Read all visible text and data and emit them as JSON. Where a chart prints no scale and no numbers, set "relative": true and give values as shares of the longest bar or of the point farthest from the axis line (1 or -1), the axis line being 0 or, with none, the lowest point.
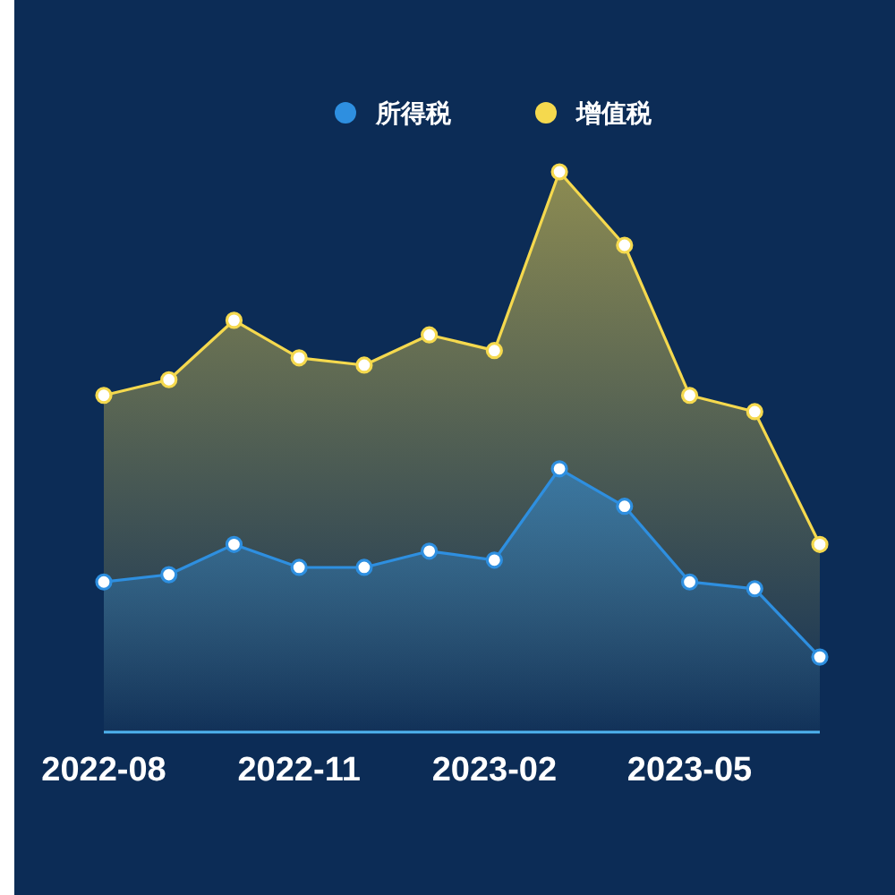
{
  "chart_data": {
    "type": "area",
    "relative": true,
    "legend": "top",
    "marker": "circle",
    "categories": [
      "2022-08",
      null,
      null,
      "2022-11",
      null,
      null,
      "2023-02",
      null,
      null,
      "2023-05",
      null,
      null
    ],
    "series": [
      {
        "name": "所得税",
        "color": "#2e8fe0",
        "values": [
          0.268,
          0.281,
          0.335,
          0.294,
          0.294,
          0.323,
          0.307,
          0.47,
          0.403,
          0.268,
          0.256,
          0.134
        ]
      },
      {
        "name": "增值税",
        "color": "#f5d94e",
        "values": [
          0.601,
          0.629,
          0.735,
          0.668,
          0.655,
          0.709,
          0.681,
          1,
          0.869,
          0.601,
          0.572,
          0.335
        ]
      }
    ]
  }
}
